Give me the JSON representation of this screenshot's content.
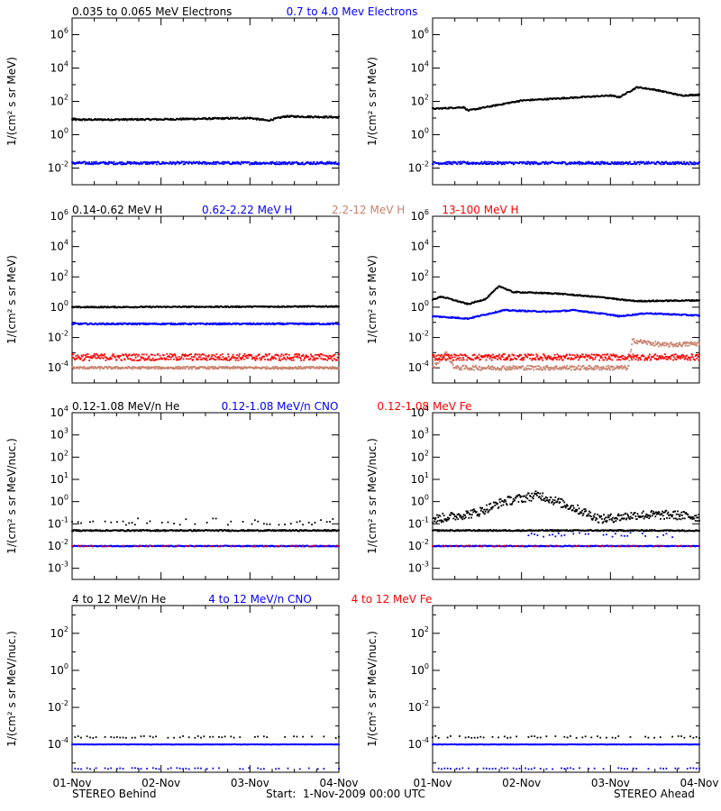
{
  "footer": {
    "left": "STEREO Behind",
    "center": "Start:  1-Nov-2009 00:00 UTC",
    "right": "STEREO Ahead"
  },
  "x_ticks": [
    "01-Nov",
    "02-Nov",
    "03-Nov",
    "04-Nov"
  ],
  "colors": {
    "black": "#000000",
    "blue": "#0000ff",
    "tan": "#c8826e",
    "red": "#ff0000"
  },
  "chart_data": [
    {
      "type": "scatter",
      "title_parts": [
        {
          "text": "0.035 to 0.065 MeV Electrons",
          "color": "black"
        },
        {
          "text": "0.7 to 4.0 Mev Electrons",
          "color": "blue"
        }
      ],
      "ylabel": "1/(cm² s sr MeV)",
      "xlim": [
        0,
        3
      ],
      "ylim_exp": [
        -3,
        7
      ],
      "yticks_exp": [
        -2,
        0,
        2,
        4,
        6
      ],
      "panels": [
        {
          "series": [
            {
              "color": "black",
              "y": [
                [
                  0,
                  0.9
                ],
                [
                  1,
                  0.92
                ],
                [
                  2,
                  1.0
                ],
                [
                  2.2,
                  0.85
                ],
                [
                  2.4,
                  1.1
                ],
                [
                  3,
                  1.05
                ]
              ],
              "scatter": 0.05
            },
            {
              "color": "blue",
              "y": [
                [
                  0,
                  -1.7
                ],
                [
                  3,
                  -1.7
                ]
              ],
              "scatter": 0.08
            }
          ]
        },
        {
          "series": [
            {
              "color": "black",
              "y": [
                [
                  0,
                  1.55
                ],
                [
                  0.35,
                  1.65
                ],
                [
                  0.4,
                  1.45
                ],
                [
                  0.7,
                  1.75
                ],
                [
                  1,
                  2.05
                ],
                [
                  1.5,
                  2.2
                ],
                [
                  2.0,
                  2.35
                ],
                [
                  2.1,
                  2.25
                ],
                [
                  2.3,
                  2.85
                ],
                [
                  2.5,
                  2.7
                ],
                [
                  2.8,
                  2.35
                ],
                [
                  3,
                  2.4
                ]
              ],
              "scatter": 0.04
            },
            {
              "color": "blue",
              "y": [
                [
                  0,
                  -1.7
                ],
                [
                  3,
                  -1.7
                ]
              ],
              "scatter": 0.08
            }
          ]
        }
      ]
    },
    {
      "type": "scatter",
      "title_parts": [
        {
          "text": "0.14-0.62 MeV H",
          "color": "black"
        },
        {
          "text": "0.62-2.22 MeV H",
          "color": "blue"
        },
        {
          "text": "2.2-12 MeV H",
          "color": "tan"
        },
        {
          "text": "13-100 MeV H",
          "color": "red"
        }
      ],
      "ylabel": "1/(cm² s sr MeV)",
      "xlim": [
        0,
        3
      ],
      "ylim_exp": [
        -5,
        6
      ],
      "yticks_exp": [
        -4,
        -2,
        0,
        2,
        4,
        6
      ],
      "panels": [
        {
          "series": [
            {
              "color": "black",
              "y": [
                [
                  0,
                  0.0
                ],
                [
                  3,
                  0.05
                ]
              ],
              "scatter": 0.04
            },
            {
              "color": "blue",
              "y": [
                [
                  0,
                  -1.1
                ],
                [
                  3,
                  -1.1
                ]
              ],
              "scatter": 0.05
            },
            {
              "color": "tan",
              "y": [
                [
                  0,
                  -4.0
                ],
                [
                  3,
                  -4.0
                ]
              ],
              "scatter": 0.08
            },
            {
              "color": "red",
              "y": [
                [
                  0,
                  -3.3
                ],
                [
                  3,
                  -3.3
                ]
              ],
              "scatter": 0.22
            }
          ]
        },
        {
          "series": [
            {
              "color": "black",
              "y": [
                [
                  0,
                  0.5
                ],
                [
                  0.1,
                  0.7
                ],
                [
                  0.4,
                  0.2
                ],
                [
                  0.6,
                  0.55
                ],
                [
                  0.75,
                  1.4
                ],
                [
                  0.9,
                  1.0
                ],
                [
                  1.4,
                  0.9
                ],
                [
                  1.8,
                  0.7
                ],
                [
                  2.0,
                  0.6
                ],
                [
                  2.1,
                  0.5
                ],
                [
                  2.3,
                  0.4
                ],
                [
                  3,
                  0.45
                ]
              ],
              "scatter": 0.04
            },
            {
              "color": "blue",
              "y": [
                [
                  0,
                  -0.6
                ],
                [
                  0.4,
                  -0.75
                ],
                [
                  0.8,
                  -0.2
                ],
                [
                  1.3,
                  -0.3
                ],
                [
                  1.6,
                  -0.2
                ],
                [
                  2.0,
                  -0.5
                ],
                [
                  2.1,
                  -0.6
                ],
                [
                  2.4,
                  -0.4
                ],
                [
                  3,
                  -0.55
                ]
              ],
              "scatter": 0.04
            },
            {
              "color": "tan",
              "y": [
                [
                  0,
                  -4.0
                ],
                [
                  0.15,
                  -3.0
                ],
                [
                  0.25,
                  -4.0
                ],
                [
                  2.2,
                  -4.0
                ],
                [
                  2.25,
                  -2.2
                ],
                [
                  2.6,
                  -2.5
                ],
                [
                  3,
                  -2.4
                ]
              ],
              "scatter": 0.15
            },
            {
              "color": "red",
              "y": [
                [
                  0,
                  -3.3
                ],
                [
                  3,
                  -3.3
                ]
              ],
              "scatter": 0.2
            }
          ]
        }
      ]
    },
    {
      "type": "scatter",
      "title_parts": [
        {
          "text": "0.12-1.08 MeV/n He",
          "color": "black"
        },
        {
          "text": "0.12-1.08 MeV/n CNO",
          "color": "blue"
        },
        {
          "text": "0.12-1.08 MeV Fe",
          "color": "red"
        }
      ],
      "ylabel": "1/(cm² s sr MeV/nuc.)",
      "xlim": [
        0,
        3
      ],
      "ylim_exp": [
        -3.5,
        4
      ],
      "yticks_exp": [
        -3,
        -2,
        -1,
        0,
        1,
        2,
        3,
        4
      ],
      "panels": [
        {
          "series": [
            {
              "color": "black",
              "y": [
                [
                  0,
                  -1.3
                ],
                [
                  3,
                  -1.3
                ]
              ],
              "scatter": 0.03
            },
            {
              "color": "black",
              "y": [
                [
                  0,
                  -0.9
                ],
                [
                  3,
                  -0.9
                ]
              ],
              "scatter": 0.15,
              "sparse": true
            },
            {
              "color": "blue",
              "y": [
                [
                  0,
                  -2.0
                ],
                [
                  3,
                  -2.0
                ]
              ],
              "scatter": 0.02
            },
            {
              "color": "red",
              "y": [
                [
                  0,
                  -2.0
                ],
                [
                  3,
                  -2.0
                ]
              ],
              "scatter": 0.02,
              "sparse": true
            }
          ]
        },
        {
          "series": [
            {
              "color": "black",
              "y": [
                [
                  0,
                  -1.3
                ],
                [
                  3,
                  -1.3
                ]
              ],
              "scatter": 0.03
            },
            {
              "color": "black",
              "y": [
                [
                  0,
                  -0.8
                ],
                [
                  0.5,
                  -0.5
                ],
                [
                  0.8,
                  0.0
                ],
                [
                  1.2,
                  0.3
                ],
                [
                  1.6,
                  -0.3
                ],
                [
                  1.9,
                  -0.8
                ],
                [
                  2.3,
                  -0.6
                ],
                [
                  2.7,
                  -0.6
                ],
                [
                  3,
                  -0.7
                ]
              ],
              "scatter": 0.2
            },
            {
              "color": "blue",
              "y": [
                [
                  0,
                  -2.0
                ],
                [
                  3,
                  -2.0
                ]
              ],
              "scatter": 0.02
            },
            {
              "color": "red",
              "y": [
                [
                  0,
                  -2.0
                ],
                [
                  3,
                  -2.0
                ]
              ],
              "scatter": 0.02,
              "sparse": true
            },
            {
              "color": "blue",
              "y": [
                [
                  1.0,
                  -1.5
                ],
                [
                  2.7,
                  -1.5
                ]
              ],
              "scatter": 0.1,
              "sparse": true
            }
          ]
        }
      ]
    },
    {
      "type": "scatter",
      "title_parts": [
        {
          "text": "4 to 12 MeV/n He",
          "color": "black"
        },
        {
          "text": "4 to 12 MeV/n CNO",
          "color": "blue"
        },
        {
          "text": "4 to 12 MeV Fe",
          "color": "red"
        }
      ],
      "ylabel": "1/(cm² s sr MeV/nuc.)",
      "xlim": [
        0,
        3
      ],
      "ylim_exp": [
        -5.5,
        3.5
      ],
      "yticks_exp": [
        -4,
        -2,
        0,
        2
      ],
      "panels": [
        {
          "series": [
            {
              "color": "blue",
              "y": [
                [
                  0,
                  -4.0
                ],
                [
                  3,
                  -4.0
                ]
              ],
              "scatter": 0.01
            },
            {
              "color": "black",
              "y": [
                [
                  0,
                  -3.6
                ],
                [
                  3,
                  -3.6
                ]
              ],
              "scatter": 0.05,
              "sparse": true
            },
            {
              "color": "blue",
              "y": [
                [
                  0,
                  -5.3
                ],
                [
                  3,
                  -5.3
                ]
              ],
              "scatter": 0.03,
              "sparse": true
            }
          ]
        },
        {
          "series": [
            {
              "color": "blue",
              "y": [
                [
                  0,
                  -4.0
                ],
                [
                  3,
                  -4.0
                ]
              ],
              "scatter": 0.01
            },
            {
              "color": "black",
              "y": [
                [
                  0,
                  -3.6
                ],
                [
                  3,
                  -3.6
                ]
              ],
              "scatter": 0.05,
              "sparse": true
            },
            {
              "color": "blue",
              "y": [
                [
                  0,
                  -5.3
                ],
                [
                  3,
                  -5.3
                ]
              ],
              "scatter": 0.03,
              "sparse": true
            }
          ]
        }
      ]
    }
  ]
}
